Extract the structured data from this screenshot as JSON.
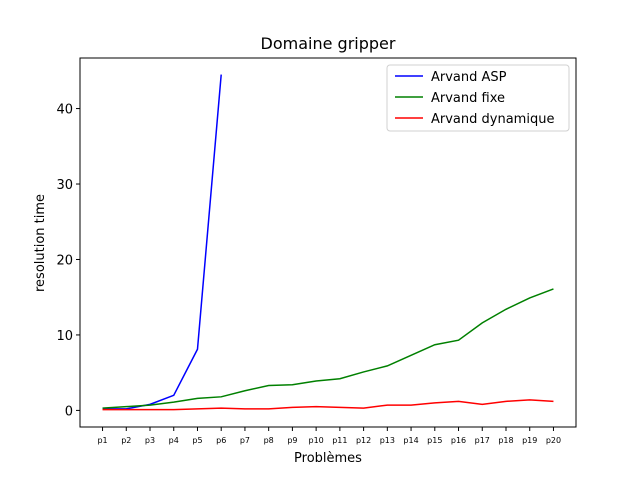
{
  "chart_data": {
    "type": "line",
    "title": "Domaine gripper",
    "x_label": "Problèmes",
    "y_label": "resolution time",
    "categories": [
      "p1",
      "p2",
      "p3",
      "p4",
      "p5",
      "p6",
      "p7",
      "p8",
      "p9",
      "p10",
      "p11",
      "p12",
      "p13",
      "p14",
      "p15",
      "p16",
      "p17",
      "p18",
      "p19",
      "p20"
    ],
    "series": [
      {
        "name": "Arvand ASP",
        "color": "#0000ff",
        "values": [
          0.2,
          0.2,
          0.8,
          2.0,
          8.1,
          44.5,
          null,
          null,
          null,
          null,
          null,
          null,
          null,
          null,
          null,
          null,
          null,
          null,
          null,
          null
        ]
      },
      {
        "name": "Arvand fixe",
        "color": "#008000",
        "values": [
          0.3,
          0.5,
          0.7,
          1.1,
          1.6,
          1.8,
          2.6,
          3.3,
          3.4,
          3.9,
          4.2,
          5.1,
          5.9,
          7.3,
          8.7,
          9.3,
          11.6,
          13.4,
          14.9,
          16.1
        ]
      },
      {
        "name": "Arvand dynamique",
        "color": "#ff0000",
        "values": [
          0.1,
          0.1,
          0.1,
          0.1,
          0.2,
          0.3,
          0.2,
          0.2,
          0.4,
          0.5,
          0.4,
          0.3,
          0.7,
          0.7,
          1.0,
          1.2,
          0.8,
          1.2,
          1.4,
          1.2
        ]
      }
    ],
    "ylim": [
      -2.2,
      46.7
    ],
    "yticks": [
      0,
      10,
      20,
      30,
      40
    ],
    "legend": "upper right"
  }
}
